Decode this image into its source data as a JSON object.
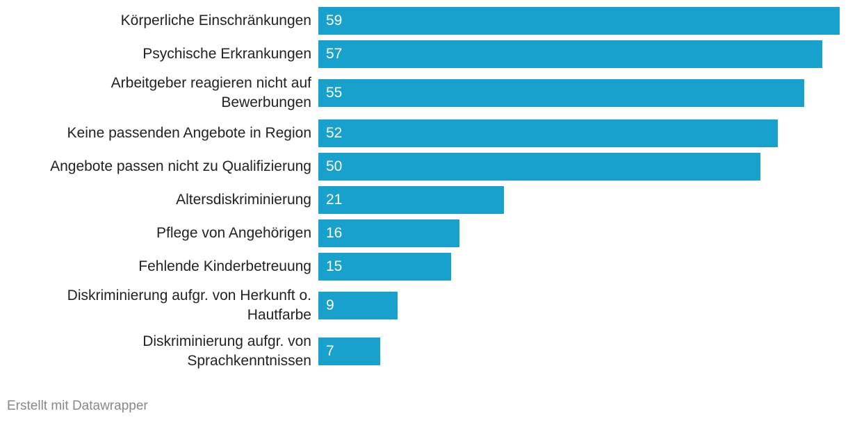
{
  "chart_data": {
    "type": "bar",
    "orientation": "horizontal",
    "categories": [
      "Körperliche Einschränkungen",
      "Psychische Erkrankungen",
      "Arbeitgeber reagieren nicht auf\nBewerbungen",
      "Keine passenden Angebote in Region",
      "Angebote passen nicht zu Qualifizierung",
      "Altersdiskriminierung",
      "Pflege von Angehörigen",
      "Fehlende Kinderbetreuung",
      "Diskriminierung aufgr. von Herkunft o.\nHautfarbe",
      "Diskriminierung aufgr. von\nSprachkenntnissen"
    ],
    "values": [
      59,
      57,
      55,
      52,
      50,
      21,
      16,
      15,
      9,
      7
    ],
    "xlim": [
      0,
      59
    ],
    "grid": false,
    "bar_color": "#18a1cd",
    "value_labels": "inside-left"
  },
  "footer": "Erstellt mit Datawrapper"
}
